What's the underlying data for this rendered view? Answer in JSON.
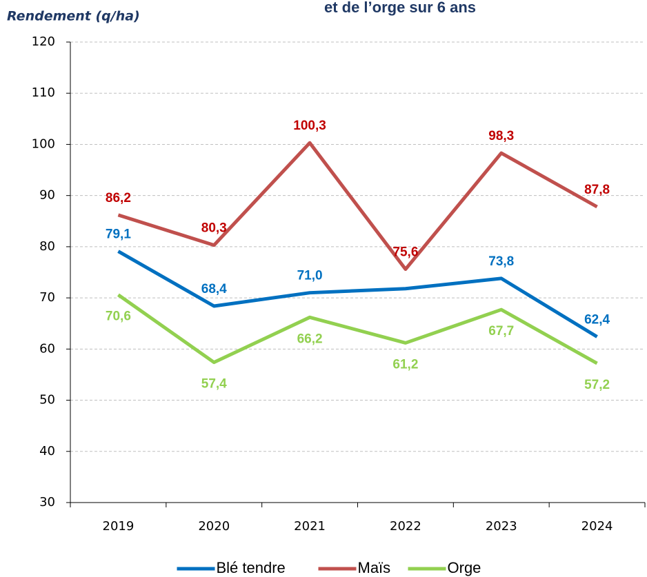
{
  "chart_data": {
    "type": "line",
    "title": "et de l’orge sur 6 ans",
    "y_label": "Rendement (q/ha)",
    "categories": [
      "2019",
      "2020",
      "2021",
      "2022",
      "2023",
      "2024"
    ],
    "series": [
      {
        "name": "Blé tendre",
        "color": "#0070c0",
        "label_color": "#0070c0",
        "values": [
          79.1,
          68.4,
          71.0,
          71.8,
          73.8,
          62.4
        ],
        "value_labels": [
          "79,1",
          "68,4",
          "71,0",
          null,
          "73,8",
          "62,4"
        ],
        "label_position": "above"
      },
      {
        "name": "Maïs",
        "color": "#c0504d",
        "label_color": "#c00000",
        "values": [
          86.2,
          80.3,
          100.3,
          75.6,
          98.3,
          87.8
        ],
        "value_labels": [
          "86,2",
          "80,3",
          "100,3",
          "75,6",
          "98,3",
          "87,8"
        ],
        "label_position": "above"
      },
      {
        "name": "Orge",
        "color": "#92d050",
        "label_color": "#92d050",
        "values": [
          70.6,
          57.4,
          66.2,
          61.2,
          67.7,
          57.2
        ],
        "value_labels": [
          "70,6",
          "57,4",
          "66,2",
          "61,2",
          "67,7",
          "57,2"
        ],
        "label_position": "below"
      }
    ],
    "ylim": [
      30,
      120
    ],
    "yticks": [
      30,
      40,
      50,
      60,
      70,
      80,
      90,
      100,
      110,
      120
    ],
    "grid": true,
    "legend": "bottom"
  }
}
